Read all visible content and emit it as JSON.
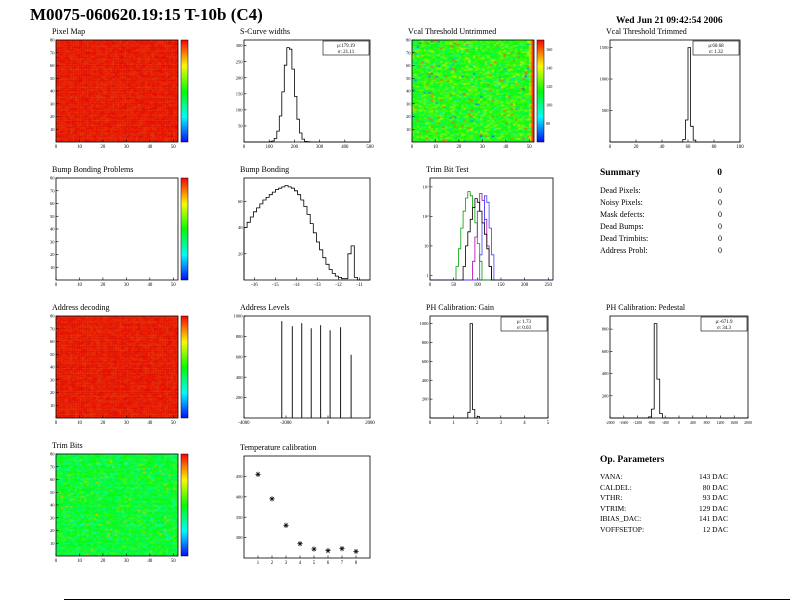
{
  "page": {
    "title": "M0075-060620.19:15 T-10b (C4)",
    "date": "Wed Jun 21 09:42:54 2006"
  },
  "summary": {
    "heading": "Summary",
    "total": "0",
    "rows": [
      {
        "label": "Dead Pixels:",
        "value": "0"
      },
      {
        "label": "Noisy Pixels:",
        "value": "0"
      },
      {
        "label": "Mask defects:",
        "value": "0"
      },
      {
        "label": "Dead Bumps:",
        "value": "0"
      },
      {
        "label": "Dead Trimbits:",
        "value": "0"
      },
      {
        "label": "Address Probl:",
        "value": "0"
      }
    ]
  },
  "op_parameters": {
    "heading": "Op. Parameters",
    "rows": [
      {
        "label": "VANA:",
        "value": "143 DAC"
      },
      {
        "label": "CALDEL:",
        "value": "80 DAC"
      },
      {
        "label": "VTHR:",
        "value": "93 DAC"
      },
      {
        "label": "VTRIM:",
        "value": "129 DAC"
      },
      {
        "label": "IBIAS_DAC:",
        "value": "141 DAC"
      },
      {
        "label": "VOFFSETOP:",
        "value": "12 DAC"
      }
    ]
  },
  "chart_data": [
    {
      "id": "pixel-map",
      "title": "Pixel Map",
      "type": "heatmap",
      "style": "solid-red",
      "x_range": [
        0,
        52
      ],
      "y_range": [
        0,
        80
      ],
      "x_ticks": [
        0,
        10,
        20,
        30,
        40,
        50
      ],
      "y_ticks": [
        10,
        20,
        30,
        40,
        50,
        60,
        70,
        80
      ],
      "colorbar": true,
      "palette": "rainbow",
      "fill_color": "#ee1c24"
    },
    {
      "id": "s-curve-widths",
      "title": "S-Curve widths",
      "type": "histogram",
      "x_range": [
        0,
        500
      ],
      "x_ticks": [
        0,
        100,
        200,
        300,
        400,
        500
      ],
      "y_ticks": [
        50,
        100,
        150,
        200,
        250,
        300
      ],
      "stats": {
        "mu": "μ:179.19",
        "sigma": "σ: 21.11"
      },
      "bins": [
        0,
        0,
        0,
        0,
        0,
        0,
        0,
        0,
        0,
        0,
        1,
        3,
        11,
        34,
        81,
        156,
        239,
        294,
        289,
        227,
        142,
        71,
        28,
        9,
        2,
        1,
        0,
        0,
        0,
        0,
        0,
        0,
        0,
        0,
        0,
        0,
        0,
        0,
        0,
        0,
        0,
        0,
        0,
        0,
        0,
        0,
        0,
        0,
        0,
        0
      ]
    },
    {
      "id": "vcal-threshold-untrimmed",
      "title": "Vcal Threshold Untrimmed",
      "type": "heatmap",
      "style": "noise-warm",
      "x_range": [
        0,
        52
      ],
      "y_range": [
        0,
        80
      ],
      "x_ticks": [
        0,
        10,
        20,
        30,
        40,
        50
      ],
      "y_ticks": [
        10,
        20,
        30,
        40,
        50,
        60,
        70,
        80
      ],
      "colorbar": true,
      "palette": "rainbow",
      "z_range": [
        60,
        170
      ],
      "z_ticks": [
        80,
        100,
        120,
        140,
        160
      ]
    },
    {
      "id": "vcal-threshold-trimmed",
      "title": "Vcal Threshold Trimmed",
      "type": "histogram",
      "x_range": [
        0,
        100
      ],
      "x_ticks": [
        0,
        20,
        40,
        60,
        80,
        100
      ],
      "y_ticks": [
        500,
        1000,
        1500
      ],
      "stats": {
        "mu": "μ:60.68",
        "sigma": "σ: 1.32"
      },
      "bins": [
        0,
        0,
        0,
        0,
        0,
        0,
        0,
        0,
        0,
        0,
        0,
        0,
        0,
        0,
        0,
        0,
        0,
        0,
        0,
        0,
        0,
        0,
        0,
        0,
        0,
        0,
        0,
        0,
        40,
        350,
        1500,
        250,
        30,
        0,
        0,
        0,
        0,
        0,
        0,
        0,
        0,
        0,
        0,
        0,
        0,
        0,
        0,
        0,
        0,
        0
      ]
    },
    {
      "id": "bump-bonding-problems",
      "title": "Bump Bonding Problems",
      "type": "heatmap",
      "style": "empty",
      "x_range": [
        0,
        52
      ],
      "y_range": [
        0,
        80
      ],
      "x_ticks": [
        0,
        10,
        20,
        30,
        40,
        50
      ],
      "y_ticks": [
        10,
        20,
        30,
        40,
        50,
        60,
        70,
        80
      ],
      "colorbar": true,
      "palette": "rainbow"
    },
    {
      "id": "bump-bonding",
      "title": "Bump Bonding",
      "type": "histogram",
      "x_range": [
        -16.5,
        -10.5
      ],
      "x_ticks": [
        -16,
        -15,
        -14,
        -13,
        -12,
        -11
      ],
      "y_ticks": [
        20,
        40,
        60
      ],
      "bins": [
        40,
        44,
        48,
        52,
        55,
        58,
        61,
        63,
        65,
        67,
        69,
        70,
        71,
        72,
        71,
        70,
        68,
        65,
        61,
        56,
        50,
        43,
        36,
        29,
        23,
        17,
        12,
        8,
        5,
        3,
        2,
        1,
        1,
        20,
        26,
        2,
        0,
        0,
        0,
        0
      ]
    },
    {
      "id": "trim-bit-test",
      "title": "Trim Bit Test",
      "type": "multi-histogram",
      "log_y": true,
      "x_range": [
        0,
        260
      ],
      "x_ticks": [
        0,
        50,
        100,
        150,
        200,
        250
      ],
      "y_range": [
        0.7,
        2000
      ],
      "y_tick_values": [
        1,
        10,
        100,
        1000
      ],
      "y_tick_labels": [
        "1",
        "10",
        "10²",
        "10³"
      ],
      "series": [
        {
          "name": "green",
          "color": "#00a000",
          "bins": [
            0,
            0,
            0,
            0,
            0,
            0,
            0,
            0,
            0,
            0,
            0,
            2,
            8,
            40,
            150,
            420,
            700,
            500,
            200,
            60,
            12,
            3,
            0,
            0,
            0,
            0,
            0,
            0,
            0,
            0,
            0,
            0,
            0,
            0,
            0,
            0,
            0,
            0,
            0,
            0,
            0,
            0,
            0,
            0,
            0,
            0,
            0,
            0,
            0,
            0,
            0,
            0
          ]
        },
        {
          "name": "magenta",
          "color": "#b000b0",
          "bins": [
            0,
            0,
            0,
            0,
            0,
            0,
            0,
            0,
            0,
            0,
            0,
            0,
            0,
            0,
            0,
            0,
            0,
            0,
            3,
            20,
            150,
            600,
            350,
            80,
            10,
            2,
            0,
            0,
            0,
            0,
            0,
            0,
            0,
            0,
            0,
            0,
            0,
            0,
            0,
            0,
            0,
            0,
            0,
            0,
            0,
            0,
            0,
            0,
            0,
            0,
            0,
            0
          ]
        },
        {
          "name": "blue",
          "color": "#4040ff",
          "bins": [
            0,
            0,
            0,
            0,
            0,
            0,
            0,
            0,
            0,
            0,
            0,
            0,
            0,
            0,
            0,
            0,
            0,
            0,
            0,
            0,
            0,
            5,
            60,
            500,
            300,
            40,
            5,
            0,
            0,
            0,
            0,
            0,
            0,
            0,
            0,
            0,
            0,
            0,
            0,
            0,
            0,
            0,
            0,
            0,
            0,
            0,
            0,
            0,
            0,
            0,
            0,
            0
          ]
        },
        {
          "name": "black",
          "color": "#000000",
          "bins": [
            0,
            0,
            0,
            0,
            0,
            0,
            0,
            0,
            0,
            0,
            0,
            0,
            0,
            0,
            2,
            10,
            30,
            80,
            200,
            400,
            300,
            150,
            60,
            25,
            8,
            2,
            0,
            0,
            0,
            0,
            0,
            0,
            0,
            0,
            0,
            0,
            0,
            0,
            0,
            0,
            0,
            0,
            0,
            0,
            0,
            0,
            0,
            0,
            0,
            0,
            0,
            0
          ]
        }
      ]
    },
    {
      "id": "address-decoding",
      "title": "Address decoding",
      "type": "heatmap",
      "style": "solid-red",
      "x_range": [
        0,
        52
      ],
      "y_range": [
        0,
        80
      ],
      "x_ticks": [
        0,
        10,
        20,
        30,
        40,
        50
      ],
      "y_ticks": [
        10,
        20,
        30,
        40,
        50,
        60,
        70,
        80
      ],
      "colorbar": true,
      "palette": "rainbow",
      "fill_color": "#ee1c24"
    },
    {
      "id": "address-levels",
      "title": "Address Levels",
      "type": "spikes",
      "x_range": [
        -4000,
        2000
      ],
      "x_ticks": [
        -4000,
        -2000,
        0,
        2000
      ],
      "y_range": [
        0,
        1000
      ],
      "y_ticks": [
        200,
        400,
        600,
        800,
        1000
      ],
      "spikes": [
        [
          -2200,
          950
        ],
        [
          -1700,
          900
        ],
        [
          -1250,
          930
        ],
        [
          -800,
          880
        ],
        [
          -350,
          910
        ],
        [
          100,
          860
        ],
        [
          600,
          890
        ],
        [
          1100,
          620
        ]
      ]
    },
    {
      "id": "ph-calibration-gain",
      "title": "PH Calibration: Gain",
      "type": "histogram",
      "x_range": [
        0,
        5
      ],
      "x_ticks": [
        0,
        1,
        2,
        3,
        4,
        5
      ],
      "y_ticks": [
        200,
        400,
        600,
        800,
        1000
      ],
      "stats": {
        "mu": "μ: 1.73",
        "sigma": "σ: 0.03"
      },
      "bins": [
        0,
        0,
        0,
        0,
        0,
        0,
        0,
        0,
        0,
        0,
        0,
        0,
        0,
        0,
        0,
        0,
        60,
        1000,
        90,
        0,
        15,
        0,
        0,
        0,
        0,
        0,
        0,
        0,
        0,
        0,
        0,
        0,
        0,
        0,
        0,
        0,
        0,
        0,
        0,
        0,
        0,
        0,
        0,
        0,
        0,
        0,
        0,
        0,
        0,
        0
      ]
    },
    {
      "id": "ph-calibration-pedestal",
      "title": "PH Calibration: Pedestal",
      "type": "histogram",
      "x_range": [
        -2000,
        2000
      ],
      "x_ticks": [
        -2000,
        -1600,
        -1200,
        -800,
        -400,
        0,
        400,
        800,
        1200,
        1600,
        2000
      ],
      "y_ticks": [
        200,
        400,
        600,
        800
      ],
      "stats": {
        "mu": "μ:-671.9",
        "sigma": "σ: 34.3"
      },
      "bins": [
        0,
        0,
        0,
        0,
        0,
        0,
        0,
        0,
        0,
        0,
        0,
        0,
        0,
        0,
        10,
        80,
        850,
        350,
        40,
        0,
        0,
        0,
        0,
        0,
        0,
        0,
        0,
        0,
        0,
        0,
        0,
        0,
        0,
        0,
        0,
        0,
        0,
        0,
        0,
        0,
        0,
        0,
        0,
        0,
        0,
        0,
        0,
        0,
        0,
        0
      ]
    },
    {
      "id": "trim-bits",
      "title": "Trim Bits",
      "type": "heatmap",
      "style": "noise-green",
      "x_range": [
        0,
        52
      ],
      "y_range": [
        0,
        80
      ],
      "x_ticks": [
        0,
        10,
        20,
        30,
        40,
        50
      ],
      "y_ticks": [
        10,
        20,
        30,
        40,
        50,
        60,
        70,
        80
      ],
      "colorbar": true,
      "palette": "rainbow"
    },
    {
      "id": "temperature-calibration",
      "title": "Temperature calibration",
      "type": "scatter",
      "marker": "asterisk",
      "x_range": [
        0,
        9
      ],
      "x_ticks": [
        1,
        2,
        3,
        4,
        5,
        6,
        7,
        8
      ],
      "y_range": [
        250,
        500
      ],
      "y_ticks": [
        300,
        350,
        400,
        450
      ],
      "points": [
        [
          1,
          455
        ],
        [
          2,
          395
        ],
        [
          3,
          330
        ],
        [
          4,
          285
        ],
        [
          5,
          272
        ],
        [
          6,
          268
        ],
        [
          7,
          273
        ],
        [
          8,
          266
        ]
      ]
    }
  ]
}
